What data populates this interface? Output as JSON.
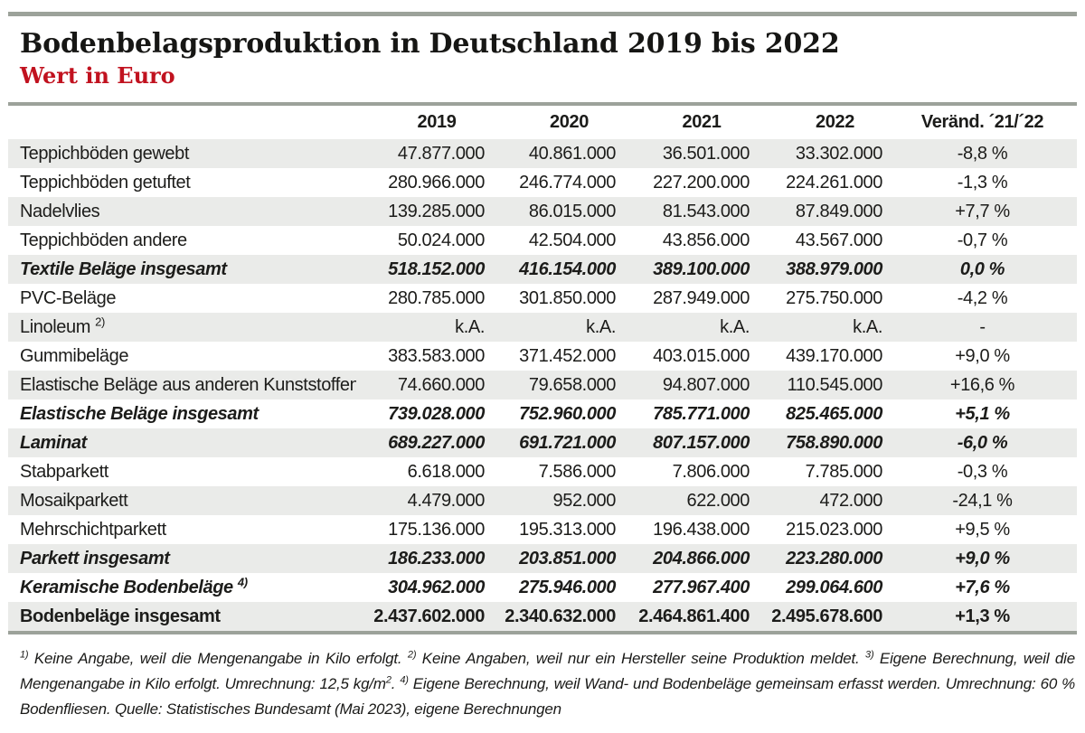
{
  "colors": {
    "subtitle_red": "#c1121f",
    "row_stripe": "#eaebe9",
    "rule_gray_green": "#9ca29a"
  },
  "chart_data": {
    "type": "table",
    "title": "Bodenbelagsproduktion in Deutschland 2019 bis 2022",
    "subtitle": "Wert in Euro",
    "columns": [
      "",
      "2019",
      "2020",
      "2021",
      "2022",
      "Veränd. ´21/´22"
    ],
    "rows": [
      {
        "label": "Teppichböden gewebt",
        "values": [
          "47.877.000",
          "40.861.000",
          "36.501.000",
          "33.302.000"
        ],
        "change": "-8,8 %",
        "style": "normal"
      },
      {
        "label": "Teppichböden getuftet",
        "values": [
          "280.966.000",
          "246.774.000",
          "227.200.000",
          "224.261.000"
        ],
        "change": "-1,3 %",
        "style": "normal"
      },
      {
        "label": "Nadelvlies",
        "values": [
          "139.285.000",
          "86.015.000",
          "81.543.000",
          "87.849.000"
        ],
        "change": "+7,7 %",
        "style": "normal"
      },
      {
        "label": "Teppichböden andere",
        "values": [
          "50.024.000",
          "42.504.000",
          "43.856.000",
          "43.567.000"
        ],
        "change": "-0,7 %",
        "style": "normal"
      },
      {
        "label": "Textile Beläge insgesamt",
        "values": [
          "518.152.000",
          "416.154.000",
          "389.100.000",
          "388.979.000"
        ],
        "change": "0,0 %",
        "style": "subtotal"
      },
      {
        "label": "PVC-Beläge",
        "values": [
          "280.785.000",
          "301.850.000",
          "287.949.000",
          "275.750.000"
        ],
        "change": "-4,2 %",
        "style": "normal"
      },
      {
        "label": "Linoleum",
        "sup": "2)",
        "values": [
          "k.A.",
          "k.A.",
          "k.A.",
          "k.A."
        ],
        "change": "-",
        "style": "normal"
      },
      {
        "label": "Gummibeläge",
        "values": [
          "383.583.000",
          "371.452.000",
          "403.015.000",
          "439.170.000"
        ],
        "change": "+9,0 %",
        "style": "normal"
      },
      {
        "label": "Elastische Beläge aus anderen Kunststoffen",
        "values": [
          "74.660.000",
          "79.658.000",
          "94.807.000",
          "110.545.000"
        ],
        "change": "+16,6 %",
        "style": "normal"
      },
      {
        "label": "Elastische Beläge insgesamt",
        "values": [
          "739.028.000",
          "752.960.000",
          "785.771.000",
          "825.465.000"
        ],
        "change": "+5,1 %",
        "style": "subtotal"
      },
      {
        "label": "Laminat",
        "values": [
          "689.227.000",
          "691.721.000",
          "807.157.000",
          "758.890.000"
        ],
        "change": "-6,0 %",
        "style": "subtotal"
      },
      {
        "label": "Stabparkett",
        "values": [
          "6.618.000",
          "7.586.000",
          "7.806.000",
          "7.785.000"
        ],
        "change": "-0,3 %",
        "style": "normal"
      },
      {
        "label": "Mosaikparkett",
        "values": [
          "4.479.000",
          "952.000",
          "622.000",
          "472.000"
        ],
        "change": "-24,1 %",
        "style": "normal"
      },
      {
        "label": "Mehrschichtparkett",
        "values": [
          "175.136.000",
          "195.313.000",
          "196.438.000",
          "215.023.000"
        ],
        "change": "+9,5 %",
        "style": "normal"
      },
      {
        "label": "Parkett insgesamt",
        "values": [
          "186.233.000",
          "203.851.000",
          "204.866.000",
          "223.280.000"
        ],
        "change": "+9,0 %",
        "style": "subtotal"
      },
      {
        "label": "Keramische Bodenbeläge",
        "sup": "4)",
        "values": [
          "304.962.000",
          "275.946.000",
          "277.967.400",
          "299.064.600"
        ],
        "change": "+7,6 %",
        "style": "subtotal"
      },
      {
        "label": "Bodenbeläge insgesamt",
        "values": [
          "2.437.602.000",
          "2.340.632.000",
          "2.464.861.400",
          "2.495.678.600"
        ],
        "change": "+1,3 %",
        "style": "total"
      }
    ],
    "footnote_segments": [
      {
        "sup": "1)"
      },
      {
        "text": " Keine Angabe, weil die Mengenangabe in Kilo erfolgt. "
      },
      {
        "sup": "2)"
      },
      {
        "text": " Keine Angaben, weil nur ein Hersteller seine Produktion meldet. "
      },
      {
        "sup": "3)"
      },
      {
        "text": " Eigene Berechnung, weil die Mengenangabe in Kilo erfolgt. Umrechnung: 12,5 kg/m"
      },
      {
        "sup": "2"
      },
      {
        "text": ". "
      },
      {
        "sup": "4)"
      },
      {
        "text": " Eigene Berechnung, weil Wand- und Bodenbeläge gemeinsam erfasst werden. Umrechnung: 60 % Bodenfliesen. Quelle: Statistisches Bundesamt (Mai 2023), eigene Berechnungen"
      }
    ]
  }
}
